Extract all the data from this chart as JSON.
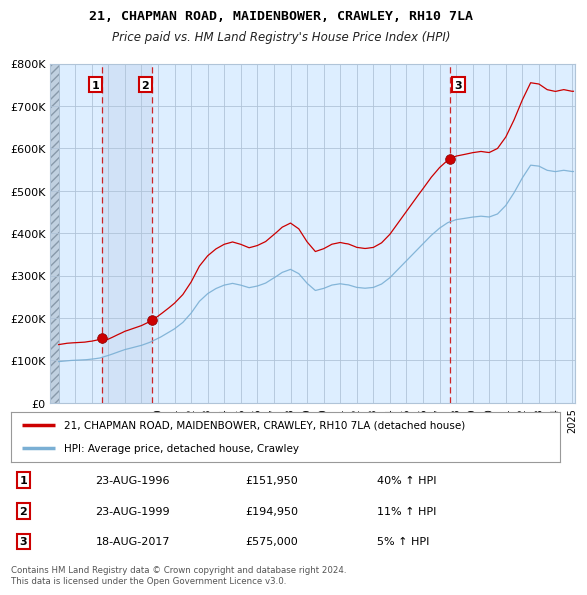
{
  "title1": "21, CHAPMAN ROAD, MAIDENBOWER, CRAWLEY, RH10 7LA",
  "title2": "Price paid vs. HM Land Registry's House Price Index (HPI)",
  "background_color": "#ffffff",
  "plot_bg_color": "#ddeeff",
  "hatch_bg_color": "#c8d8e8",
  "grid_color": "#b0c4d8",
  "red_line_color": "#cc0000",
  "blue_line_color": "#7aafd4",
  "sale_marker_color": "#cc0000",
  "dashed_line_color": "#cc0000",
  "shade_between_color": "#ccddf0",
  "ylim": [
    0,
    800000
  ],
  "yticks": [
    0,
    100000,
    200000,
    300000,
    400000,
    500000,
    600000,
    700000,
    800000
  ],
  "ytick_labels": [
    "£0",
    "£100K",
    "£200K",
    "£300K",
    "£400K",
    "£500K",
    "£600K",
    "£700K",
    "£800K"
  ],
  "xlim_start": 1993.5,
  "xlim_end": 2025.2,
  "sales": [
    {
      "date": 1996.644,
      "price": 151950,
      "label": "1"
    },
    {
      "date": 1999.644,
      "price": 194950,
      "label": "2"
    },
    {
      "date": 2017.644,
      "price": 575000,
      "label": "3"
    }
  ],
  "table_data": [
    [
      "1",
      "23-AUG-1996",
      "£151,950",
      "40% ↑ HPI"
    ],
    [
      "2",
      "23-AUG-1999",
      "£194,950",
      "11% ↑ HPI"
    ],
    [
      "3",
      "18-AUG-2017",
      "£575,000",
      "5% ↑ HPI"
    ]
  ],
  "footer": "Contains HM Land Registry data © Crown copyright and database right 2024.\nThis data is licensed under the Open Government Licence v3.0.",
  "legend_entries": [
    "21, CHAPMAN ROAD, MAIDENBOWER, CRAWLEY, RH10 7LA (detached house)",
    "HPI: Average price, detached house, Crawley"
  ]
}
